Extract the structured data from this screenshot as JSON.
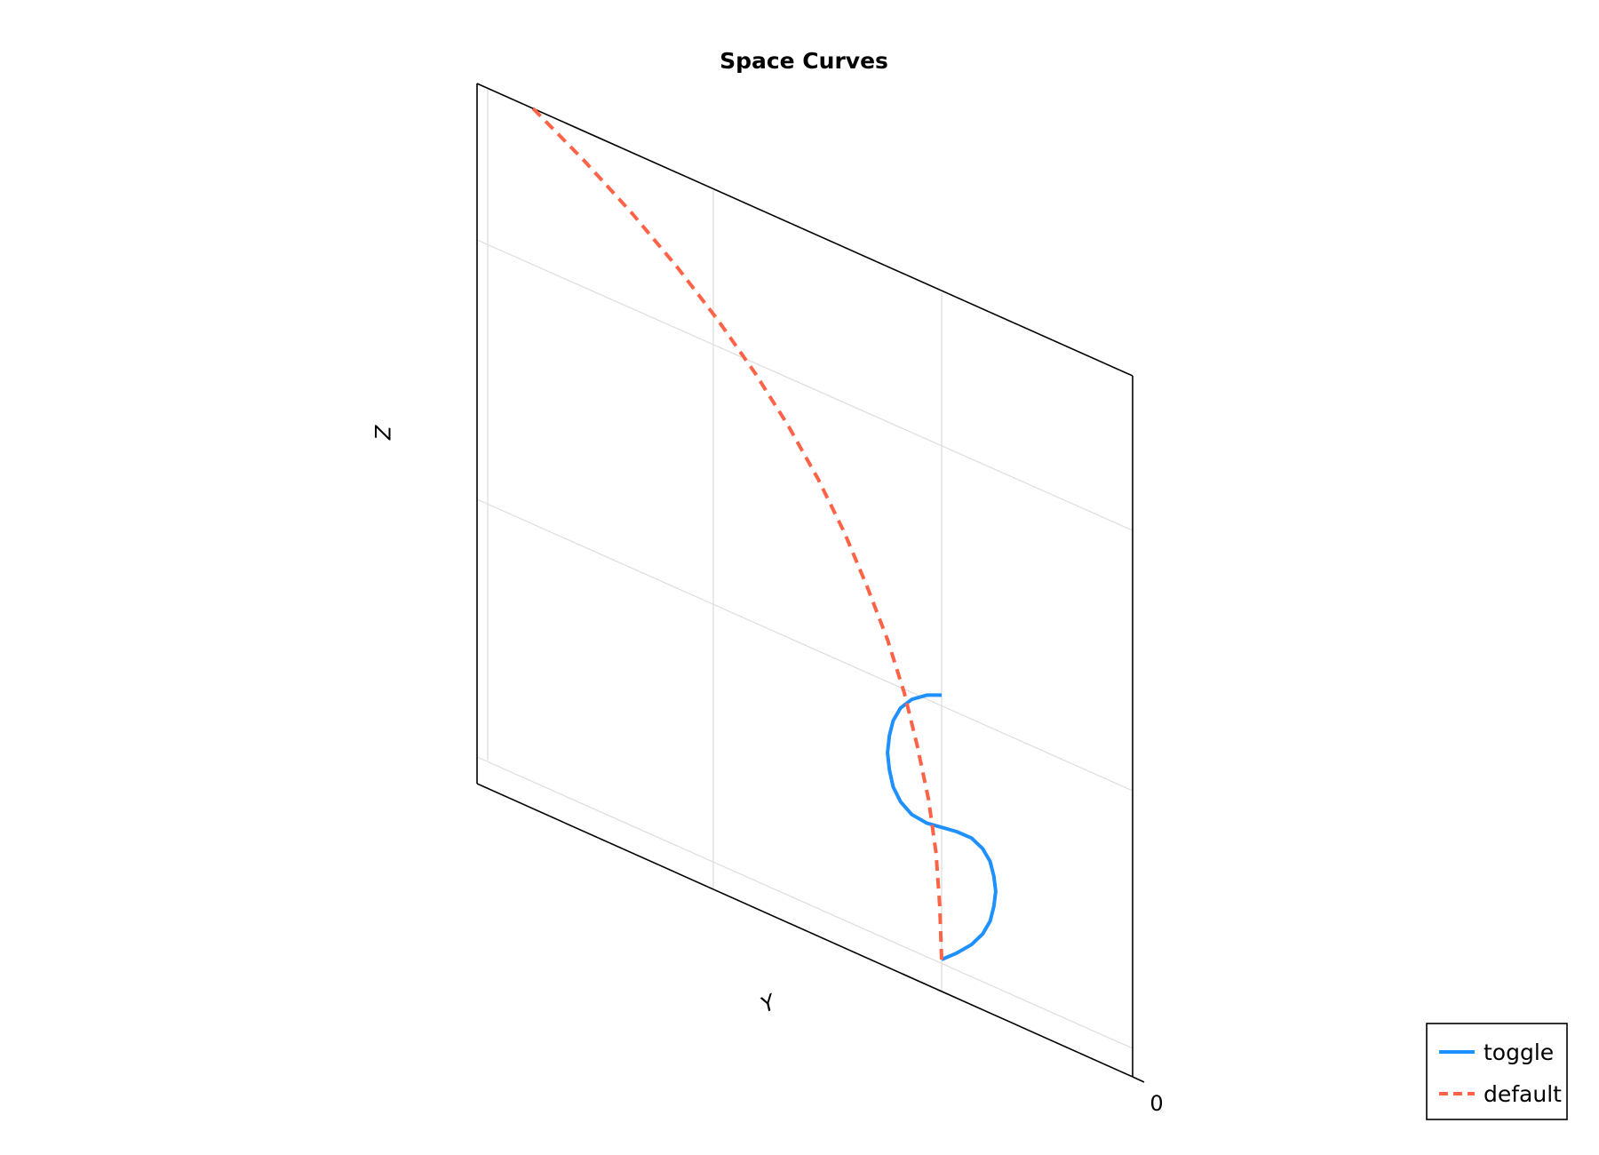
{
  "chart_data": {
    "type": "line",
    "projection": "3d",
    "title": "Space Curves",
    "xlabel": "",
    "ylabel": "Y",
    "zlabel": "Z",
    "x_tick_labels": [
      "0"
    ],
    "grid": true,
    "legend_position": "bottom-right",
    "series": [
      {
        "name": "toggle",
        "style": "solid",
        "color": "#1e90ff",
        "y": [
          0.0,
          0.08,
          0.16,
          0.22,
          0.26,
          0.28,
          0.29,
          0.28,
          0.26,
          0.22,
          0.16,
          0.08,
          0.0,
          -0.08,
          -0.16,
          -0.22,
          -0.26,
          -0.28,
          -0.29,
          -0.28,
          -0.26,
          -0.22,
          -0.16,
          -0.08,
          0.0
        ],
        "z": [
          0.0,
          0.06,
          0.14,
          0.24,
          0.36,
          0.5,
          0.64,
          0.78,
          0.92,
          1.04,
          1.14,
          1.2,
          1.24,
          1.28,
          1.36,
          1.48,
          1.62,
          1.78,
          1.94,
          2.1,
          2.24,
          2.36,
          2.44,
          2.48,
          2.48
        ]
      },
      {
        "name": "default",
        "style": "dashed",
        "color": "#ff6347",
        "y": [
          0.0,
          -0.01,
          -0.03,
          -0.07,
          -0.13,
          -0.2,
          -0.29,
          -0.4,
          -0.52,
          -0.66,
          -0.82,
          -1.0,
          -1.2,
          -1.42,
          -1.66,
          -1.92,
          -2.2
        ],
        "z": [
          0.0,
          0.5,
          1.0,
          1.5,
          2.0,
          2.5,
          3.0,
          3.5,
          4.0,
          4.5,
          5.0,
          5.5,
          6.0,
          6.5,
          7.0,
          7.5,
          8.0
        ]
      }
    ]
  }
}
